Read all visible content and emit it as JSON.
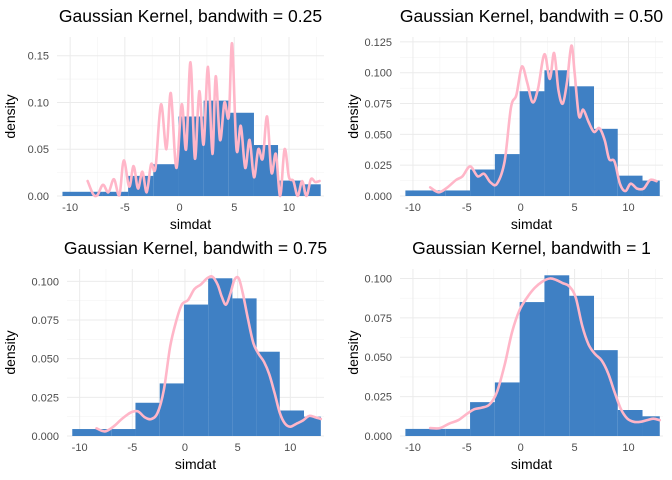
{
  "chart_data": [
    {
      "type": "bar",
      "title": "Gaussian Kernel, bandwith = 0.25",
      "xlabel": "simdat",
      "ylabel": "density",
      "xlim": [
        -11.2,
        13.2
      ],
      "ylim": [
        0,
        0.17
      ],
      "xticks": [
        "-10",
        "-5",
        "0",
        "5",
        "10"
      ],
      "yticks": [
        "0.00",
        "0.05",
        "0.10",
        "0.15"
      ],
      "bins": [
        {
          "x0": -10.7,
          "x1": -7.0,
          "y": 0.0045
        },
        {
          "x0": -7.0,
          "x1": -4.7,
          "y": 0.0045
        },
        {
          "x0": -4.7,
          "x1": -2.4,
          "y": 0.0215
        },
        {
          "x0": -2.4,
          "x1": -0.1,
          "y": 0.034
        },
        {
          "x0": -0.1,
          "x1": 2.2,
          "y": 0.085
        },
        {
          "x0": 2.2,
          "x1": 4.5,
          "y": 0.102
        },
        {
          "x0": 4.5,
          "x1": 6.8,
          "y": 0.089
        },
        {
          "x0": 6.8,
          "x1": 9.0,
          "y": 0.0545
        },
        {
          "x0": 9.0,
          "x1": 11.3,
          "y": 0.0165
        },
        {
          "x0": 11.3,
          "x1": 12.9,
          "y": 0.0125
        }
      ],
      "kde": {
        "x": [
          -8.4,
          -7.9,
          -7.5,
          -7.0,
          -6.5,
          -6.0,
          -5.5,
          -5.1,
          -4.6,
          -4.2,
          -3.8,
          -3.4,
          -3.0,
          -2.6,
          -2.2,
          -1.7,
          -1.2,
          -0.8,
          -0.3,
          0.2,
          0.6,
          1.0,
          1.4,
          1.8,
          2.2,
          2.6,
          3.0,
          3.3,
          3.7,
          4.1,
          4.5,
          4.8,
          5.2,
          5.6,
          6.0,
          6.4,
          6.8,
          7.2,
          7.6,
          8.0,
          8.4,
          8.8,
          9.2,
          9.6,
          10.0,
          10.4,
          10.8,
          11.2,
          11.6,
          12.0,
          12.4,
          12.8
        ],
        "y": [
          0.016,
          0.002,
          0.001,
          0.012,
          0.004,
          0.018,
          0.001,
          0.038,
          0.01,
          0.032,
          0.008,
          0.026,
          0.004,
          0.034,
          0.03,
          0.098,
          0.05,
          0.11,
          0.03,
          0.098,
          0.05,
          0.143,
          0.04,
          0.112,
          0.055,
          0.138,
          0.045,
          0.128,
          0.06,
          0.1,
          0.085,
          0.163,
          0.05,
          0.075,
          0.03,
          0.06,
          0.02,
          0.05,
          0.04,
          0.085,
          0.025,
          0.045,
          0.0,
          0.05,
          0.02,
          0.016,
          0.0,
          0.016,
          0.0,
          0.018,
          0.015,
          0.016
        ]
      }
    },
    {
      "type": "bar",
      "title": "Gaussian Kernel, bandwith = 0.50",
      "xlabel": "simdat",
      "ylabel": "density",
      "xlim": [
        -11.2,
        13.2
      ],
      "ylim": [
        0,
        0.129
      ],
      "xticks": [
        "-10",
        "-5",
        "0",
        "5",
        "10"
      ],
      "yticks": [
        "0.000",
        "0.025",
        "0.050",
        "0.075",
        "0.100",
        "0.125"
      ],
      "bins": [
        {
          "x0": -10.7,
          "x1": -7.0,
          "y": 0.0045
        },
        {
          "x0": -7.0,
          "x1": -4.7,
          "y": 0.0045
        },
        {
          "x0": -4.7,
          "x1": -2.4,
          "y": 0.0215
        },
        {
          "x0": -2.4,
          "x1": -0.1,
          "y": 0.034
        },
        {
          "x0": -0.1,
          "x1": 2.2,
          "y": 0.085
        },
        {
          "x0": 2.2,
          "x1": 4.5,
          "y": 0.102
        },
        {
          "x0": 4.5,
          "x1": 6.8,
          "y": 0.089
        },
        {
          "x0": 6.8,
          "x1": 9.0,
          "y": 0.0545
        },
        {
          "x0": 9.0,
          "x1": 11.3,
          "y": 0.0165
        },
        {
          "x0": 11.3,
          "x1": 12.9,
          "y": 0.0125
        }
      ],
      "kde": {
        "x": [
          -8.4,
          -7.6,
          -6.8,
          -6.0,
          -5.4,
          -4.7,
          -4.0,
          -3.4,
          -2.8,
          -2.2,
          -1.5,
          -0.9,
          -0.4,
          0.1,
          0.6,
          1.1,
          1.6,
          2.2,
          2.7,
          3.1,
          3.5,
          3.9,
          4.3,
          4.7,
          5.0,
          5.4,
          5.8,
          6.3,
          6.8,
          7.3,
          7.8,
          8.2,
          8.7,
          9.2,
          9.7,
          10.2,
          10.8,
          11.4,
          12.0,
          12.6
        ],
        "y": [
          0.007,
          0.003,
          0.007,
          0.013,
          0.016,
          0.024,
          0.016,
          0.018,
          0.011,
          0.01,
          0.028,
          0.072,
          0.082,
          0.105,
          0.092,
          0.076,
          0.087,
          0.115,
          0.095,
          0.116,
          0.086,
          0.075,
          0.093,
          0.122,
          0.1,
          0.065,
          0.07,
          0.06,
          0.052,
          0.055,
          0.045,
          0.03,
          0.028,
          0.01,
          0.004,
          0.01,
          0.006,
          0.006,
          0.013,
          0.012
        ]
      }
    },
    {
      "type": "bar",
      "title": "Gaussian Kernel, bandwith = 0.75",
      "xlabel": "simdat",
      "ylabel": "density",
      "xlim": [
        -11.2,
        13.2
      ],
      "ylim": [
        0,
        0.108
      ],
      "xticks": [
        "-10",
        "-5",
        "0",
        "5",
        "10"
      ],
      "yticks": [
        "0.000",
        "0.025",
        "0.050",
        "0.075",
        "0.100"
      ],
      "bins": [
        {
          "x0": -10.7,
          "x1": -7.0,
          "y": 0.0045
        },
        {
          "x0": -7.0,
          "x1": -4.7,
          "y": 0.0045
        },
        {
          "x0": -4.7,
          "x1": -2.4,
          "y": 0.0215
        },
        {
          "x0": -2.4,
          "x1": -0.1,
          "y": 0.034
        },
        {
          "x0": -0.1,
          "x1": 2.2,
          "y": 0.085
        },
        {
          "x0": 2.2,
          "x1": 4.5,
          "y": 0.102
        },
        {
          "x0": 4.5,
          "x1": 6.8,
          "y": 0.089
        },
        {
          "x0": 6.8,
          "x1": 9.0,
          "y": 0.0545
        },
        {
          "x0": 9.0,
          "x1": 11.3,
          "y": 0.0165
        },
        {
          "x0": 11.3,
          "x1": 12.9,
          "y": 0.0125
        }
      ],
      "kde": {
        "x": [
          -8.4,
          -7.6,
          -6.8,
          -6.0,
          -5.2,
          -4.5,
          -3.8,
          -3.2,
          -2.6,
          -2.0,
          -1.4,
          -0.8,
          -0.3,
          0.3,
          0.9,
          1.5,
          2.1,
          2.6,
          3.1,
          3.5,
          3.9,
          4.3,
          4.7,
          5.1,
          5.5,
          6.0,
          6.5,
          7.0,
          7.5,
          8.0,
          8.5,
          9.0,
          9.5,
          10.0,
          10.6,
          11.2,
          11.8,
          12.4,
          12.9
        ],
        "y": [
          0.005,
          0.003,
          0.006,
          0.011,
          0.015,
          0.016,
          0.012,
          0.011,
          0.015,
          0.03,
          0.058,
          0.075,
          0.085,
          0.088,
          0.095,
          0.098,
          0.102,
          0.103,
          0.098,
          0.09,
          0.085,
          0.092,
          0.101,
          0.102,
          0.092,
          0.075,
          0.06,
          0.053,
          0.048,
          0.04,
          0.028,
          0.015,
          0.008,
          0.006,
          0.008,
          0.01,
          0.013,
          0.012,
          0.011
        ]
      }
    },
    {
      "type": "bar",
      "title": "Gaussian Kernel, bandwith = 1",
      "xlabel": "simdat",
      "ylabel": "density",
      "xlim": [
        -11.2,
        13.2
      ],
      "ylim": [
        0,
        0.106
      ],
      "xticks": [
        "-10",
        "-5",
        "0",
        "5",
        "10"
      ],
      "yticks": [
        "0.000",
        "0.025",
        "0.050",
        "0.075",
        "0.100"
      ],
      "bins": [
        {
          "x0": -10.7,
          "x1": -7.0,
          "y": 0.0045
        },
        {
          "x0": -7.0,
          "x1": -4.7,
          "y": 0.0045
        },
        {
          "x0": -4.7,
          "x1": -2.4,
          "y": 0.0215
        },
        {
          "x0": -2.4,
          "x1": -0.1,
          "y": 0.034
        },
        {
          "x0": -0.1,
          "x1": 2.2,
          "y": 0.085
        },
        {
          "x0": 2.2,
          "x1": 4.5,
          "y": 0.102
        },
        {
          "x0": 4.5,
          "x1": 6.8,
          "y": 0.089
        },
        {
          "x0": 6.8,
          "x1": 9.0,
          "y": 0.0545
        },
        {
          "x0": 9.0,
          "x1": 11.3,
          "y": 0.0165
        },
        {
          "x0": 11.3,
          "x1": 12.9,
          "y": 0.0125
        }
      ],
      "kde": {
        "x": [
          -8.4,
          -7.5,
          -6.6,
          -5.8,
          -5.0,
          -4.3,
          -3.6,
          -2.9,
          -2.2,
          -1.5,
          -0.8,
          -0.1,
          0.6,
          1.3,
          2.0,
          2.7,
          3.3,
          3.9,
          4.5,
          5.1,
          5.7,
          6.3,
          6.9,
          7.5,
          8.1,
          8.7,
          9.3,
          9.9,
          10.5,
          11.1,
          11.7,
          12.3,
          12.9
        ],
        "y": [
          0.005,
          0.005,
          0.008,
          0.01,
          0.014,
          0.017,
          0.018,
          0.02,
          0.028,
          0.045,
          0.066,
          0.08,
          0.088,
          0.094,
          0.098,
          0.1,
          0.099,
          0.097,
          0.095,
          0.088,
          0.07,
          0.058,
          0.052,
          0.048,
          0.04,
          0.028,
          0.017,
          0.011,
          0.009,
          0.009,
          0.01,
          0.011,
          0.01
        ]
      }
    }
  ]
}
